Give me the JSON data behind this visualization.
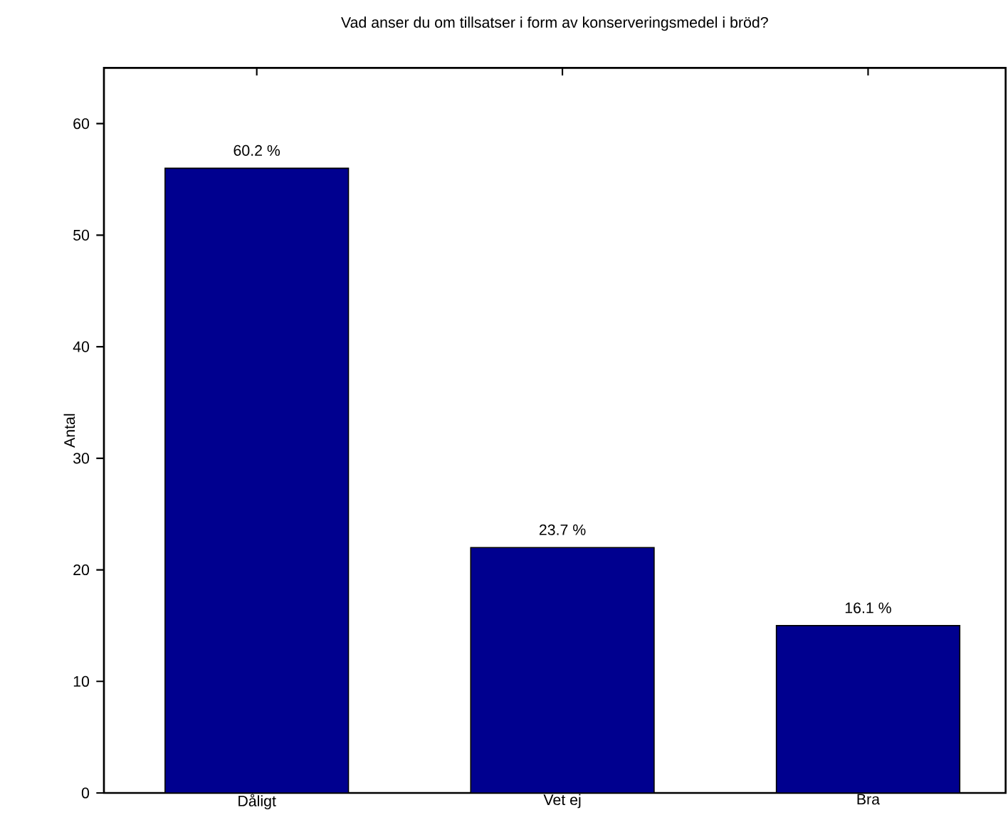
{
  "chart_data": {
    "type": "bar",
    "title": "Vad anser du om tillsatser i form av konserveringsmedel i bröd?",
    "ylabel": "Antal",
    "categories": [
      "Dåligt",
      "Vet ej",
      "Bra"
    ],
    "values": [
      56,
      22,
      15
    ],
    "annotations": [
      {
        "text": "60.2 %",
        "x": "Dåligt",
        "y": 56
      },
      {
        "text": "23.7 %",
        "x": "Vet ej",
        "y": 22
      },
      {
        "text": "16.1 %",
        "x": "Bra",
        "y": 15
      }
    ],
    "color": "#00008f",
    "ylim": [
      0,
      65
    ],
    "yticks": [
      0,
      10,
      20,
      30,
      40,
      50,
      60
    ]
  }
}
